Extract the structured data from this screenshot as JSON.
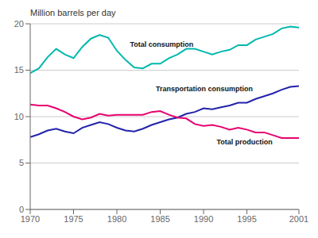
{
  "chart_data": {
    "type": "line",
    "ylabel": "Million barrels per day",
    "x": [
      1970,
      1971,
      1972,
      1973,
      1974,
      1975,
      1976,
      1977,
      1978,
      1979,
      1980,
      1981,
      1982,
      1983,
      1984,
      1985,
      1986,
      1987,
      1988,
      1989,
      1990,
      1991,
      1992,
      1993,
      1994,
      1995,
      1996,
      1997,
      1998,
      1999,
      2000,
      2001
    ],
    "series": [
      {
        "name": "Total consumption",
        "color": "#00b8ad",
        "values": [
          14.7,
          15.2,
          16.4,
          17.3,
          16.7,
          16.3,
          17.5,
          18.4,
          18.8,
          18.5,
          17.1,
          16.1,
          15.3,
          15.2,
          15.7,
          15.7,
          16.3,
          16.7,
          17.3,
          17.3,
          17.0,
          16.7,
          17.0,
          17.2,
          17.7,
          17.7,
          18.3,
          18.6,
          18.9,
          19.5,
          19.7,
          19.6
        ]
      },
      {
        "name": "Transportation consumption",
        "color": "#2222aa",
        "values": [
          7.8,
          8.1,
          8.5,
          8.7,
          8.4,
          8.2,
          8.8,
          9.1,
          9.4,
          9.2,
          8.8,
          8.5,
          8.4,
          8.7,
          9.1,
          9.4,
          9.7,
          9.9,
          10.3,
          10.5,
          10.9,
          10.8,
          11.0,
          11.2,
          11.5,
          11.5,
          11.9,
          12.2,
          12.5,
          12.9,
          13.2,
          13.3
        ]
      },
      {
        "name": "Total production",
        "color": "#e8006e",
        "values": [
          11.3,
          11.2,
          11.2,
          10.9,
          10.5,
          10.0,
          9.7,
          9.9,
          10.3,
          10.1,
          10.2,
          10.2,
          10.2,
          10.2,
          10.5,
          10.6,
          10.2,
          9.9,
          9.8,
          9.2,
          9.0,
          9.1,
          8.9,
          8.6,
          8.8,
          8.6,
          8.3,
          8.3,
          8.0,
          7.7,
          7.7,
          7.7
        ]
      }
    ],
    "annotations": [
      {
        "text": "Total consumption",
        "x": 1981.5,
        "y": 17.8
      },
      {
        "text": "Transportation consumption",
        "x": 1984.5,
        "y": 13.0
      },
      {
        "text": "Total production",
        "x": 1991.5,
        "y": 7.3
      }
    ],
    "xlim": [
      1970,
      2001
    ],
    "xticks": [
      1970,
      1975,
      1980,
      1985,
      1990,
      1995,
      2001
    ],
    "ylim": [
      0,
      20
    ],
    "yticks": [
      0,
      5,
      10,
      15,
      20
    ],
    "grid": true
  }
}
